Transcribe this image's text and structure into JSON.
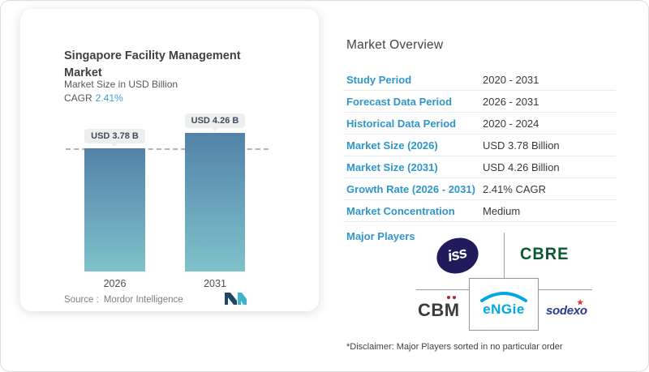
{
  "left_card": {
    "title": "Singapore Facility Management Market",
    "subtitle": "Market Size in USD Billion",
    "cagr_label": "CAGR",
    "cagr_value": "2.41%",
    "source_label": "Source :",
    "source_value": "Mordor Intelligence"
  },
  "chart_data": {
    "type": "bar",
    "categories": [
      "2026",
      "2031"
    ],
    "values": [
      3.78,
      4.26
    ],
    "value_labels": [
      "USD 3.78 B",
      "USD 4.26 B"
    ],
    "unit": "USD Billion",
    "title": "Singapore Facility Management Market",
    "ylim": [
      0,
      4.26
    ],
    "dashed_reference_line": 3.78,
    "legend": "none",
    "grid": "off",
    "bar_gradient_top": "#5282a8",
    "bar_gradient_bottom": "#7fc2cb"
  },
  "overview": {
    "title": "Market Overview",
    "rows": [
      {
        "label": "Study Period",
        "value": "2020 - 2031"
      },
      {
        "label": "Forecast Data Period",
        "value": "2026 - 2031"
      },
      {
        "label": "Historical Data Period",
        "value": "2020 - 2024"
      },
      {
        "label": "Market Size (2026)",
        "value": "USD 3.78 Billion"
      },
      {
        "label": "Market Size (2031)",
        "value": "USD 4.26 Billion"
      },
      {
        "label": "Growth Rate (2026 - 2031)",
        "value": "2.41% CAGR"
      },
      {
        "label": "Market Concentration",
        "value": "Medium"
      }
    ],
    "major_players_label": "Major Players",
    "major_players": {
      "iss": "iss",
      "cbre": "CBRE",
      "cbm_prefix": "CB",
      "cbm_m": "M",
      "engie": "eNGie",
      "sodexo_prefix": "sode",
      "sodexo_x": "x",
      "sodexo_star": "★",
      "sodexo_suffix": "o"
    },
    "disclaimer": "*Disclaimer: Major Players sorted in no particular order"
  },
  "colors": {
    "label_blue": "#2e96c8",
    "cagr_teal": "#3aa2cc",
    "iss_navy": "#211a5c",
    "cbre_green": "#0b5837",
    "engie_blue": "#00a7e3",
    "sodexo_navy": "#2b3a8d",
    "accent_red": "#b5242c"
  }
}
